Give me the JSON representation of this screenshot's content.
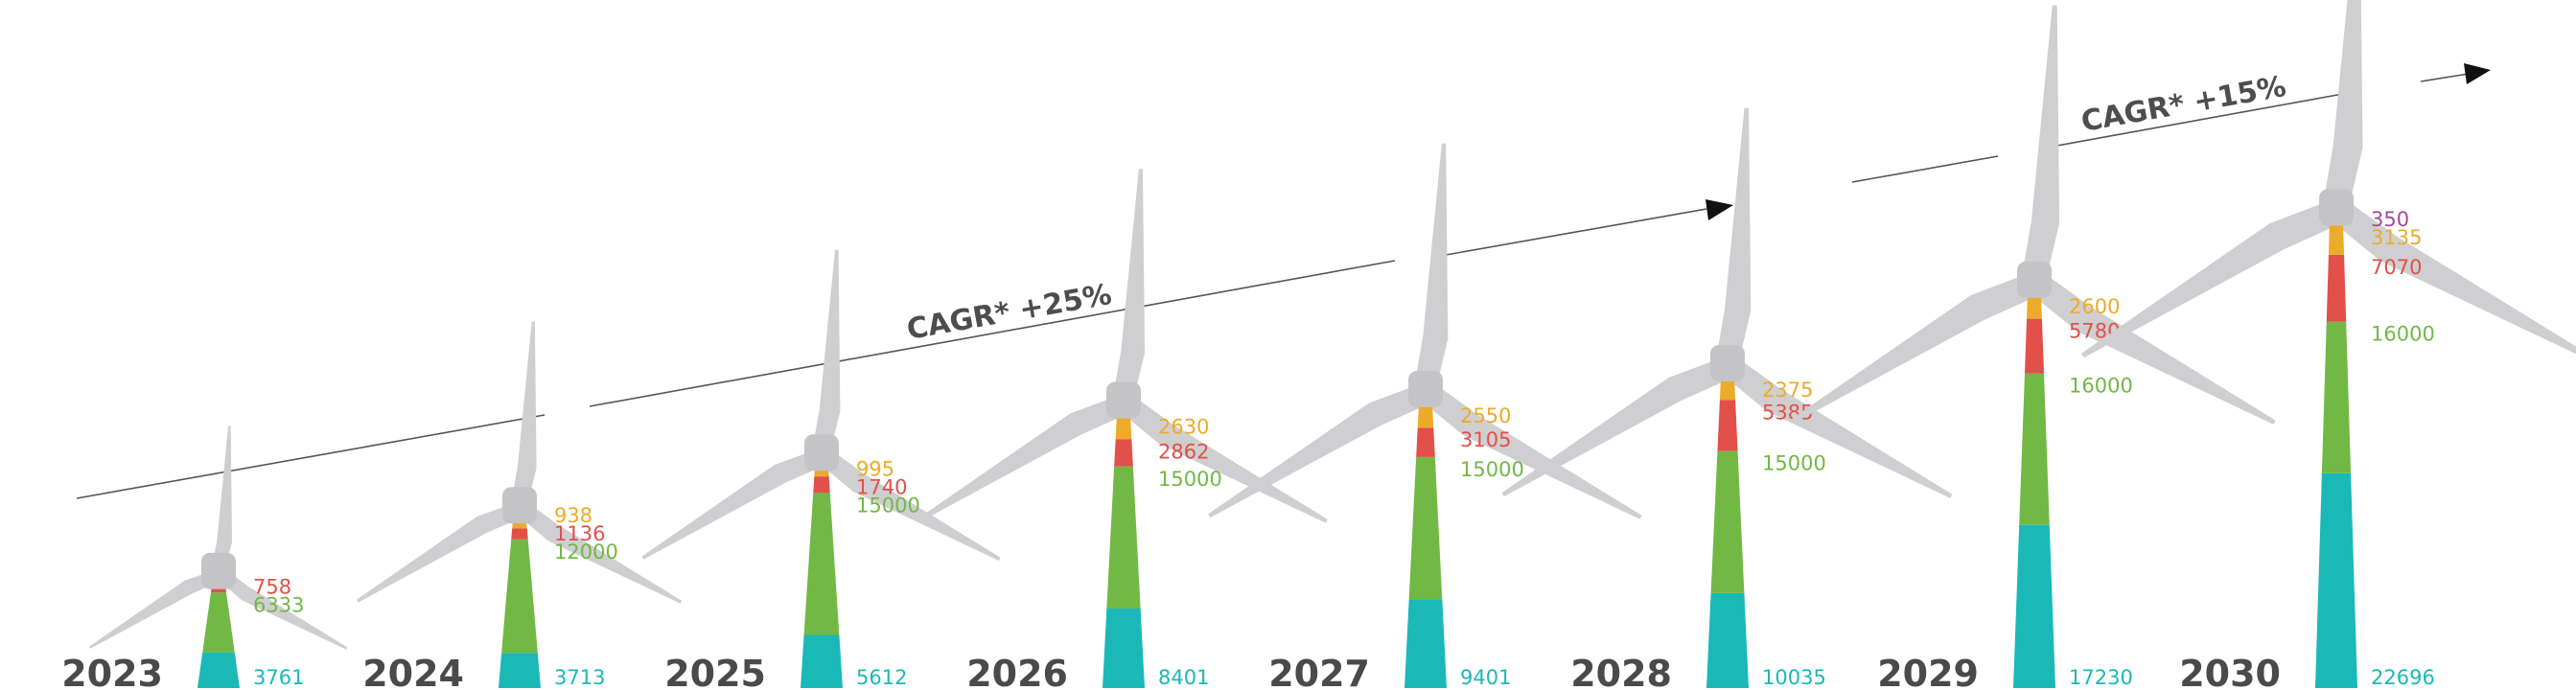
{
  "colors": {
    "seg1": "#1bb8b8",
    "seg2": "#72b845",
    "seg3": "#e2504a",
    "seg4": "#ecab2a",
    "seg5": "#a2489c",
    "blade": "#cfcfd1",
    "hub": "#c4c4c6",
    "year": "#4a4a4a",
    "line": "#555555"
  },
  "annotations": {
    "cagr1": "CAGR* +25%",
    "cagr2": "CAGR* +15%"
  },
  "chart_data": {
    "type": "bar",
    "stacked": true,
    "categories": [
      "2023",
      "2024",
      "2025",
      "2026",
      "2027",
      "2028",
      "2029",
      "2030"
    ],
    "series": [
      {
        "values": [
          3761,
          3713,
          5612,
          8401,
          9401,
          10035,
          17230,
          22696
        ]
      },
      {
        "values": [
          6333,
          12000,
          15000,
          15000,
          15000,
          15000,
          16000,
          16000
        ]
      },
      {
        "values": [
          758,
          1136,
          1740,
          2862,
          3105,
          5385,
          5780,
          7070
        ]
      },
      {
        "values": [
          0,
          938,
          995,
          2630,
          2550,
          2375,
          2600,
          3135
        ]
      },
      {
        "values": [
          0,
          0,
          0,
          0,
          0,
          0,
          0,
          350
        ]
      }
    ],
    "title": "",
    "xlabel": "",
    "ylabel": "",
    "legend": "none",
    "grid": false
  }
}
